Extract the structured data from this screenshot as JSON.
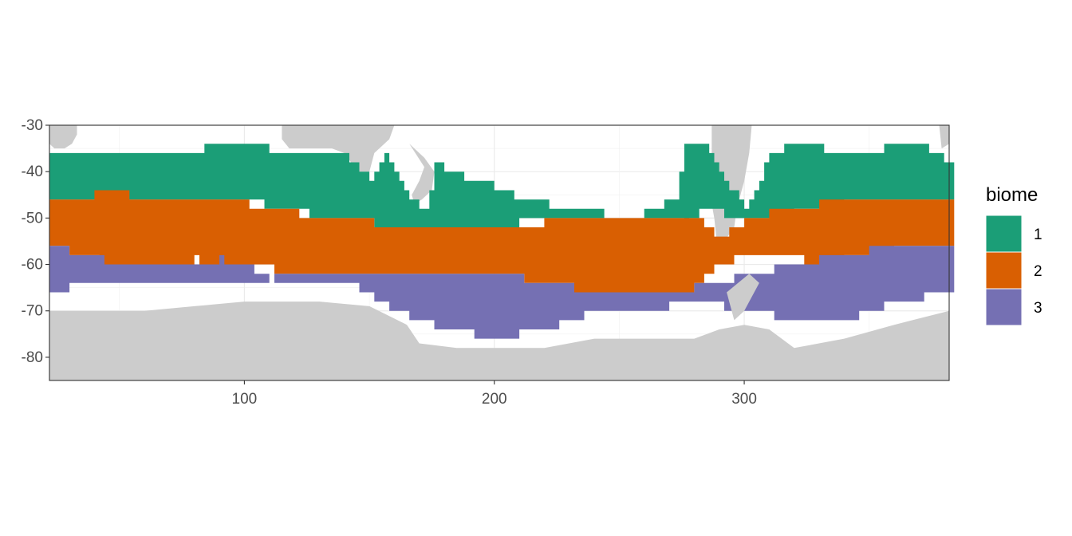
{
  "chart_data": {
    "type": "heatmap",
    "xlim": [
      22,
      382
    ],
    "ylim": [
      -85,
      -30
    ],
    "x_ticks": [
      100,
      200,
      300
    ],
    "y_ticks": [
      -30,
      -40,
      -50,
      -60,
      -70,
      -80
    ],
    "grid": true,
    "legend_position": "right",
    "legend": {
      "title": "biome",
      "entries": [
        {
          "label": "1",
          "color": "#1b9e77"
        },
        {
          "label": "2",
          "color": "#d95f02"
        },
        {
          "label": "3",
          "color": "#7570b3"
        }
      ]
    },
    "land_color": "#cccccc",
    "biome_bands": [
      {
        "biome": "1",
        "lat_profile": [
          [
            22,
            -46,
            -36
          ],
          [
            50,
            -46,
            -36
          ],
          [
            82,
            -46,
            -36
          ],
          [
            85,
            -46,
            -34
          ],
          [
            105,
            -46,
            -34
          ],
          [
            108,
            -48,
            -35
          ],
          [
            120,
            -49,
            -36
          ],
          [
            125,
            -49,
            -35
          ],
          [
            140,
            -50,
            -37
          ],
          [
            150,
            -51,
            -42
          ],
          [
            156,
            -52,
            -37
          ],
          [
            165,
            -52,
            -45
          ],
          [
            172,
            -52,
            -49
          ],
          [
            176,
            -52,
            -38
          ],
          [
            180,
            -53,
            -40
          ],
          [
            195,
            -52,
            -42
          ],
          [
            210,
            -51,
            -46
          ],
          [
            230,
            -50,
            -48
          ],
          [
            255,
            -50,
            -50
          ],
          [
            272,
            -50,
            -46
          ],
          [
            276,
            -52,
            -34
          ],
          [
            283,
            -48,
            -34
          ],
          [
            300,
            -50,
            -48
          ],
          [
            304,
            -51,
            -44
          ],
          [
            310,
            -50,
            -36
          ],
          [
            320,
            -49,
            -34
          ],
          [
            340,
            -47,
            -36
          ],
          [
            370,
            -46,
            -34
          ],
          [
            382,
            -46,
            -38
          ]
        ]
      },
      {
        "biome": "2",
        "lat_profile": [
          [
            22,
            -56,
            -46
          ],
          [
            35,
            -58,
            -46
          ],
          [
            45,
            -60,
            -44
          ],
          [
            60,
            -60,
            -46
          ],
          [
            80,
            -59,
            -47
          ],
          [
            100,
            -60,
            -47
          ],
          [
            120,
            -62,
            -49
          ],
          [
            140,
            -63,
            -50
          ],
          [
            160,
            -62,
            -52
          ],
          [
            180,
            -62,
            -52
          ],
          [
            200,
            -62,
            -52
          ],
          [
            220,
            -64,
            -51
          ],
          [
            240,
            -66,
            -50
          ],
          [
            260,
            -66,
            -50
          ],
          [
            280,
            -65,
            -50
          ],
          [
            290,
            -60,
            -54
          ],
          [
            300,
            -58,
            -51
          ],
          [
            315,
            -58,
            -48
          ],
          [
            330,
            -60,
            -47
          ],
          [
            350,
            -58,
            -46
          ],
          [
            370,
            -56,
            -46
          ],
          [
            382,
            -56,
            -46
          ]
        ]
      },
      {
        "biome": "3",
        "lat_profile": [
          [
            22,
            -66,
            -56
          ],
          [
            35,
            -64,
            -58
          ],
          [
            50,
            -65,
            -60
          ],
          [
            70,
            -65,
            -60
          ],
          [
            90,
            -64,
            -59
          ],
          [
            110,
            -63,
            -62
          ],
          [
            145,
            -65,
            -63
          ],
          [
            160,
            -70,
            -62
          ],
          [
            180,
            -74,
            -62
          ],
          [
            200,
            -76,
            -62
          ],
          [
            220,
            -74,
            -64
          ],
          [
            240,
            -70,
            -66
          ],
          [
            260,
            -70,
            -66
          ],
          [
            280,
            -68,
            -65
          ],
          [
            320,
            -72,
            -60
          ],
          [
            340,
            -72,
            -58
          ],
          [
            360,
            -68,
            -56
          ],
          [
            382,
            -66,
            -56
          ]
        ]
      }
    ]
  }
}
